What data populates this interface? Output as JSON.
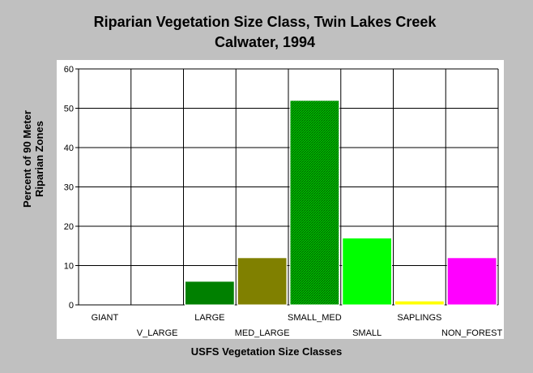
{
  "chart_data": {
    "type": "bar",
    "title": "Riparian Vegetation Size Class, Twin Lakes Creek",
    "subtitle": "Calwater, 1994",
    "xlabel": "USFS Vegetation Size Classes",
    "ylabel_line1": "Percent of 90 Meter",
    "ylabel_line2": "Riparian Zones",
    "ylim": [
      0,
      60
    ],
    "yticks": [
      0,
      10,
      20,
      30,
      40,
      50,
      60
    ],
    "grid": true,
    "categories": [
      "GIANT",
      "V_LARGE",
      "LARGE",
      "MED_LARGE",
      "SMALL_MED",
      "SMALL",
      "SAPLINGS",
      "NON_FOREST"
    ],
    "values": [
      0,
      0,
      6,
      12,
      52,
      17,
      1,
      12
    ],
    "colors": [
      "#000000",
      "#000000",
      "#008000",
      "#808000",
      "#00c000",
      "#00ff00",
      "#ffff00",
      "#ff00ff"
    ],
    "hatched": [
      false,
      false,
      false,
      false,
      true,
      false,
      false,
      false
    ]
  },
  "colors": {
    "background": "#c0c0c0",
    "plot_background": "#ffffff",
    "grid": "#000000"
  }
}
